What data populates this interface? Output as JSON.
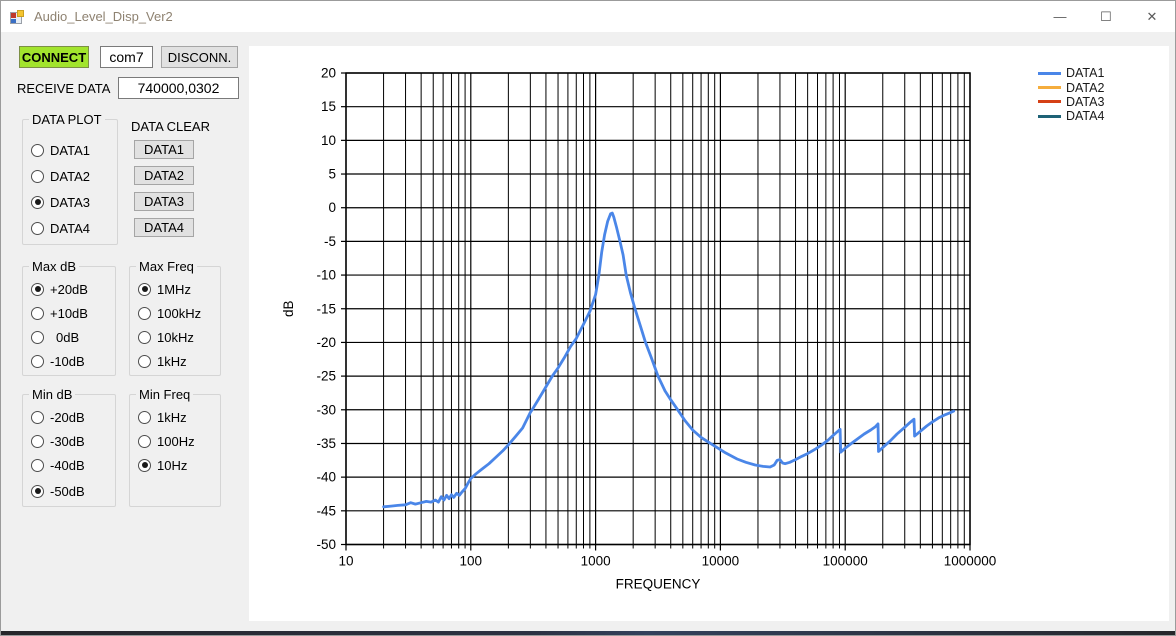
{
  "window": {
    "title": "Audio_Level_Disp_Ver2",
    "minimize": "—",
    "maximize": "☐",
    "close": "✕"
  },
  "toolbar": {
    "connect_label": "CONNECT",
    "port_value": "com7",
    "disconnect_label": "DISCONN.",
    "receive_label": "RECEIVE DATA",
    "receive_value": "740000,0302"
  },
  "controls": {
    "data_plot": {
      "title": "DATA PLOT",
      "items": [
        {
          "label": "DATA1",
          "selected": false
        },
        {
          "label": "DATA2",
          "selected": false
        },
        {
          "label": "DATA3",
          "selected": true
        },
        {
          "label": "DATA4",
          "selected": false
        }
      ]
    },
    "data_clear": {
      "title": "DATA CLEAR",
      "buttons": [
        "DATA1",
        "DATA2",
        "DATA3",
        "DATA4"
      ]
    },
    "max_db": {
      "title": "Max dB",
      "items": [
        {
          "label": "+20dB",
          "selected": true
        },
        {
          "label": "+10dB",
          "selected": false
        },
        {
          "label": "0dB",
          "selected": false
        },
        {
          "label": "-10dB",
          "selected": false
        }
      ]
    },
    "max_freq": {
      "title": "Max Freq",
      "items": [
        {
          "label": "1MHz",
          "selected": true
        },
        {
          "label": "100kHz",
          "selected": false
        },
        {
          "label": "10kHz",
          "selected": false
        },
        {
          "label": "1kHz",
          "selected": false
        }
      ]
    },
    "min_db": {
      "title": "Min dB",
      "items": [
        {
          "label": "-20dB",
          "selected": false
        },
        {
          "label": "-30dB",
          "selected": false
        },
        {
          "label": "-40dB",
          "selected": false
        },
        {
          "label": "-50dB",
          "selected": true
        }
      ]
    },
    "min_freq": {
      "title": "Min Freq",
      "items": [
        {
          "label": "1kHz",
          "selected": false
        },
        {
          "label": "100Hz",
          "selected": false
        },
        {
          "label": "10Hz",
          "selected": true
        }
      ]
    }
  },
  "chart_data": {
    "type": "line",
    "title": "",
    "xlabel": "FREQUENCY",
    "ylabel": "dB",
    "x_scale": "log",
    "xlim": [
      10,
      1000000
    ],
    "ylim": [
      -50,
      20
    ],
    "x_ticks": [
      10,
      100,
      1000,
      10000,
      100000,
      1000000
    ],
    "y_ticks": [
      20,
      15,
      10,
      5,
      0,
      -5,
      -10,
      -15,
      -20,
      -25,
      -30,
      -35,
      -40,
      -45,
      -50
    ],
    "grid": true,
    "legend_position": "top-right",
    "series": [
      {
        "name": "DATA1",
        "color": "#4a86e8",
        "points": [
          [
            20,
            -44.4
          ],
          [
            23,
            -44.3
          ],
          [
            26,
            -44.2
          ],
          [
            30,
            -44.1
          ],
          [
            33,
            -43.8
          ],
          [
            36,
            -44.0
          ],
          [
            40,
            -43.8
          ],
          [
            44,
            -43.6
          ],
          [
            48,
            -43.7
          ],
          [
            52,
            -43.4
          ],
          [
            55,
            -43.7
          ],
          [
            58,
            -42.9
          ],
          [
            61,
            -43.4
          ],
          [
            64,
            -42.7
          ],
          [
            67,
            -43.2
          ],
          [
            70,
            -42.6
          ],
          [
            73,
            -43.0
          ],
          [
            77,
            -42.4
          ],
          [
            81,
            -42.7
          ],
          [
            85,
            -42.2
          ],
          [
            90,
            -41.7
          ],
          [
            95,
            -40.9
          ],
          [
            100,
            -40.2
          ],
          [
            110,
            -39.5
          ],
          [
            125,
            -38.7
          ],
          [
            140,
            -38.0
          ],
          [
            160,
            -37.0
          ],
          [
            180,
            -36.1
          ],
          [
            200,
            -35.2
          ],
          [
            230,
            -33.9
          ],
          [
            260,
            -32.7
          ],
          [
            300,
            -30.4
          ],
          [
            310,
            -30.0
          ],
          [
            350,
            -28.4
          ],
          [
            400,
            -26.6
          ],
          [
            450,
            -25.0
          ],
          [
            500,
            -23.8
          ],
          [
            560,
            -22.3
          ],
          [
            630,
            -20.6
          ],
          [
            700,
            -19.4
          ],
          [
            800,
            -17.3
          ],
          [
            900,
            -15.4
          ],
          [
            1000,
            -12.9
          ],
          [
            1060,
            -10.1
          ],
          [
            1120,
            -6.6
          ],
          [
            1180,
            -4.0
          ],
          [
            1250,
            -2.0
          ],
          [
            1320,
            -0.9
          ],
          [
            1360,
            -0.8
          ],
          [
            1400,
            -1.4
          ],
          [
            1470,
            -2.9
          ],
          [
            1570,
            -5.0
          ],
          [
            1660,
            -7.0
          ],
          [
            1760,
            -10.0
          ],
          [
            1900,
            -12.6
          ],
          [
            2070,
            -15.0
          ],
          [
            2300,
            -17.7
          ],
          [
            2510,
            -20.0
          ],
          [
            2800,
            -22.3
          ],
          [
            3160,
            -25.0
          ],
          [
            3600,
            -27.2
          ],
          [
            4000,
            -28.5
          ],
          [
            4550,
            -30.0
          ],
          [
            5200,
            -31.6
          ],
          [
            6000,
            -33.0
          ],
          [
            7000,
            -34.1
          ],
          [
            8000,
            -34.8
          ],
          [
            9200,
            -35.5
          ],
          [
            11000,
            -36.4
          ],
          [
            13600,
            -37.3
          ],
          [
            16000,
            -37.8
          ],
          [
            19000,
            -38.2
          ],
          [
            22000,
            -38.4
          ],
          [
            25000,
            -38.5
          ],
          [
            27000,
            -38.2
          ],
          [
            28500,
            -37.5
          ],
          [
            30000,
            -37.4
          ],
          [
            31500,
            -37.9
          ],
          [
            33000,
            -38.0
          ],
          [
            36000,
            -37.8
          ],
          [
            40000,
            -37.4
          ],
          [
            45000,
            -36.9
          ],
          [
            50000,
            -36.5
          ],
          [
            57000,
            -35.9
          ],
          [
            65000,
            -35.2
          ],
          [
            73000,
            -34.5
          ],
          [
            80000,
            -33.8
          ],
          [
            86000,
            -33.3
          ],
          [
            91000,
            -32.9
          ],
          [
            92000,
            -36.3
          ],
          [
            100000,
            -35.7
          ],
          [
            112000,
            -35.0
          ],
          [
            126000,
            -34.3
          ],
          [
            142000,
            -33.6
          ],
          [
            160000,
            -33.0
          ],
          [
            175000,
            -32.5
          ],
          [
            183000,
            -32.1
          ],
          [
            185000,
            -36.2
          ],
          [
            200000,
            -35.6
          ],
          [
            230000,
            -34.6
          ],
          [
            260000,
            -33.6
          ],
          [
            300000,
            -32.6
          ],
          [
            330000,
            -31.9
          ],
          [
            356000,
            -31.4
          ],
          [
            360000,
            -33.9
          ],
          [
            400000,
            -33.2
          ],
          [
            450000,
            -32.4
          ],
          [
            500000,
            -31.8
          ],
          [
            560000,
            -31.2
          ],
          [
            620000,
            -30.8
          ],
          [
            680000,
            -30.5
          ],
          [
            740000,
            -30.2
          ]
        ]
      },
      {
        "name": "DATA2",
        "color": "#f5ad3d",
        "points": []
      },
      {
        "name": "DATA3",
        "color": "#d54016",
        "points": []
      },
      {
        "name": "DATA4",
        "color": "#1e6276",
        "points": []
      }
    ]
  }
}
